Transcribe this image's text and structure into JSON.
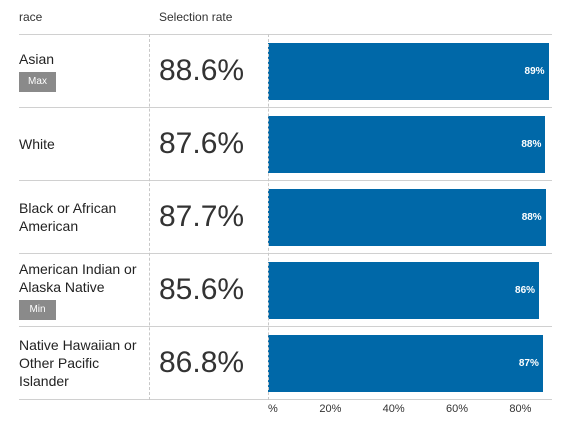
{
  "headers": {
    "race": "race",
    "rate": "Selection rate"
  },
  "rows": [
    {
      "name": "Asian",
      "badge": "Max",
      "rate_text": "88.6%",
      "bar_value": 0.886,
      "bar_label": "89%"
    },
    {
      "name": "White",
      "badge": "",
      "rate_text": "87.6%",
      "bar_value": 0.876,
      "bar_label": "88%"
    },
    {
      "name": "Black or African American",
      "badge": "",
      "rate_text": "87.7%",
      "bar_value": 0.877,
      "bar_label": "88%"
    },
    {
      "name": "American Indian or Alaska Native",
      "badge": "Min",
      "rate_text": "85.6%",
      "bar_value": 0.856,
      "bar_label": "86%"
    },
    {
      "name": "Native Hawaiian or Other Pacific Islander",
      "badge": "",
      "rate_text": "86.8%",
      "bar_value": 0.868,
      "bar_label": "87%"
    }
  ],
  "axis": {
    "max": 0.9,
    "ticks": [
      {
        "value": 0,
        "label": "%"
      },
      {
        "value": 0.2,
        "label": "20%"
      },
      {
        "value": 0.4,
        "label": "40%"
      },
      {
        "value": 0.6,
        "label": "60%"
      },
      {
        "value": 0.8,
        "label": "80%"
      }
    ]
  },
  "colors": {
    "bar": "#0068a8",
    "badge": "#8a8a8a"
  }
}
